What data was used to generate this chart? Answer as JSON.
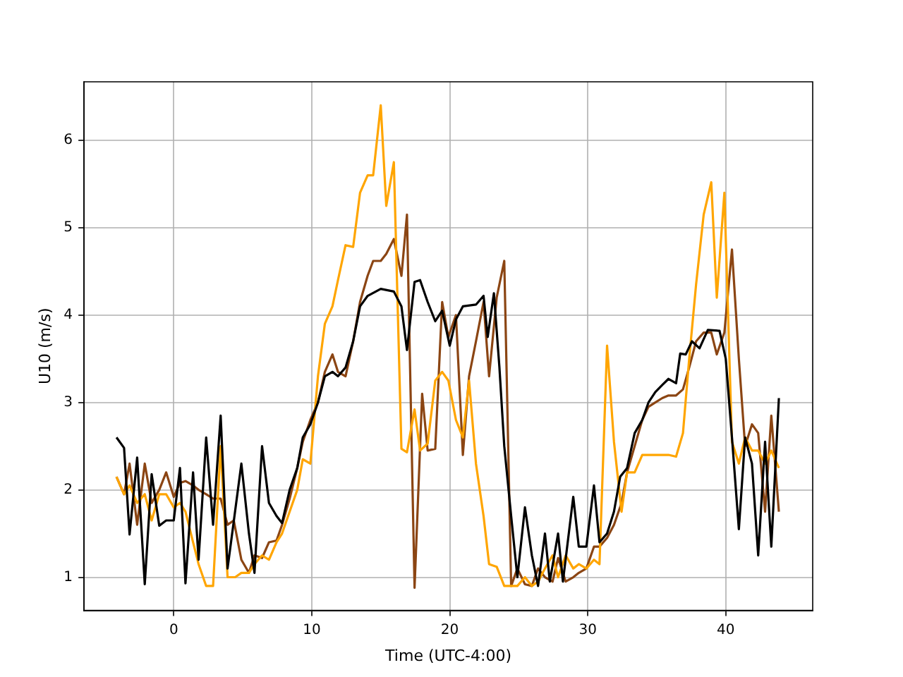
{
  "chart_data": {
    "type": "line",
    "xlabel": "Time (UTC-4:00)",
    "ylabel": "U10 (m/s)",
    "xlim": [
      -6.5,
      46.3
    ],
    "ylim": [
      0.62,
      6.67
    ],
    "xticks": [
      0,
      10,
      20,
      30,
      40
    ],
    "yticks": [
      1,
      2,
      3,
      4,
      5,
      6
    ],
    "grid": true,
    "legend": false,
    "marker": "none",
    "line_style": "solid",
    "series": [
      {
        "color": "#000000",
        "x": [
          -4.15,
          -3.6,
          -3.2,
          -2.65,
          -2.1,
          -1.6,
          -1.05,
          -0.55,
          0,
          0.45,
          0.85,
          1.4,
          1.8,
          2.35,
          2.85,
          3.4,
          3.9,
          4.9,
          5.45,
          5.85,
          6.4,
          6.9,
          7.45,
          7.85,
          8.4,
          8.95,
          9.35,
          9.9,
          10.45,
          10.95,
          11.5,
          11.9,
          12.45,
          13,
          13.5,
          14.05,
          15,
          15.95,
          16.5,
          16.9,
          17.45,
          17.85,
          18.4,
          18.95,
          19.45,
          20,
          20.45,
          20.95,
          21.9,
          22.45,
          22.75,
          23.2,
          23.6,
          23.95,
          24.45,
          24.9,
          25.45,
          25.95,
          26.4,
          26.9,
          27.25,
          27.85,
          28.2,
          28.95,
          29.35,
          29.9,
          30.45,
          30.85,
          31.4,
          31.9,
          32.35,
          32.85,
          33.4,
          33.95,
          34.4,
          34.9,
          35.4,
          35.85,
          36.4,
          36.7,
          37.1,
          37.55,
          38.1,
          38.7,
          39.55,
          40,
          40.45,
          40.95,
          41.4,
          41.9,
          42.35,
          42.85,
          43.3,
          43.85
        ],
        "values": [
          2.6,
          2.48,
          1.49,
          2.37,
          0.92,
          2.18,
          1.59,
          1.65,
          1.65,
          2.25,
          0.93,
          2.2,
          1.2,
          2.6,
          1.6,
          2.85,
          1.1,
          2.3,
          1.5,
          1.05,
          2.5,
          1.85,
          1.7,
          1.62,
          2.0,
          2.25,
          2.6,
          2.75,
          3.0,
          3.3,
          3.35,
          3.3,
          3.4,
          3.7,
          4.1,
          4.22,
          4.3,
          4.27,
          4.1,
          3.6,
          4.38,
          4.4,
          4.15,
          3.93,
          4.05,
          3.65,
          3.95,
          4.1,
          4.12,
          4.22,
          3.75,
          4.25,
          3.4,
          2.5,
          1.7,
          1.0,
          1.8,
          1.25,
          0.9,
          1.5,
          0.95,
          1.5,
          0.95,
          1.92,
          1.35,
          1.35,
          2.05,
          1.4,
          1.5,
          1.75,
          2.15,
          2.25,
          2.65,
          2.8,
          3.0,
          3.12,
          3.2,
          3.27,
          3.22,
          3.56,
          3.55,
          3.7,
          3.62,
          3.83,
          3.82,
          3.5,
          2.6,
          1.55,
          2.6,
          2.3,
          1.25,
          2.55,
          1.35,
          3.05
        ]
      },
      {
        "color": "#ffa500",
        "x": [
          -4.15,
          -3.6,
          -3.2,
          -2.65,
          -2.1,
          -1.6,
          -1.05,
          -0.55,
          0,
          0.45,
          0.85,
          1.4,
          1.8,
          2.35,
          2.85,
          3.4,
          3.9,
          4.45,
          4.9,
          5.45,
          5.85,
          6.4,
          6.9,
          7.45,
          7.85,
          8.4,
          8.95,
          9.35,
          9.9,
          10.45,
          10.95,
          11.5,
          11.9,
          12.45,
          13,
          13.5,
          14.05,
          14.45,
          15,
          15.4,
          15.95,
          16.5,
          16.9,
          17.45,
          17.85,
          18.4,
          18.95,
          19.45,
          19.9,
          20.45,
          20.95,
          21.4,
          21.9,
          22.45,
          22.85,
          23.4,
          23.95,
          24.9,
          25.45,
          25.95,
          26.4,
          26.9,
          27.45,
          27.85,
          28.4,
          28.95,
          29.35,
          29.9,
          30.45,
          30.85,
          31.4,
          31.9,
          32.45,
          32.85,
          33.4,
          33.95,
          34.4,
          34.9,
          35.4,
          35.85,
          36.4,
          36.9,
          37.35,
          37.85,
          38.4,
          38.95,
          39.35,
          39.9,
          40.45,
          40.95,
          41.4,
          41.9,
          42.35,
          42.85,
          43.3,
          43.85
        ],
        "values": [
          2.15,
          1.95,
          2.05,
          1.85,
          1.95,
          1.65,
          1.95,
          1.95,
          1.8,
          1.85,
          1.75,
          1.4,
          1.15,
          0.9,
          0.9,
          2.5,
          1.0,
          1.0,
          1.05,
          1.05,
          1.15,
          1.25,
          1.2,
          1.4,
          1.5,
          1.75,
          2.0,
          2.35,
          2.3,
          3.3,
          3.9,
          4.1,
          4.4,
          4.8,
          4.78,
          5.4,
          5.6,
          5.6,
          6.4,
          5.25,
          5.75,
          2.47,
          2.43,
          2.92,
          2.45,
          2.53,
          3.25,
          3.35,
          3.25,
          2.8,
          2.6,
          3.25,
          2.3,
          1.7,
          1.15,
          1.12,
          0.9,
          0.9,
          1.0,
          0.9,
          0.95,
          1.1,
          1.25,
          1.0,
          1.25,
          1.1,
          1.15,
          1.1,
          1.2,
          1.15,
          3.65,
          2.55,
          1.75,
          2.2,
          2.2,
          2.4,
          2.4,
          2.4,
          2.4,
          2.4,
          2.38,
          2.65,
          3.5,
          4.35,
          5.15,
          5.52,
          4.2,
          5.4,
          2.55,
          2.3,
          2.6,
          2.45,
          2.45,
          2.3,
          2.45,
          2.25
        ]
      },
      {
        "color": "#8b4513",
        "x": [
          -4.15,
          -3.6,
          -3.2,
          -2.65,
          -2.1,
          -1.6,
          -1.05,
          -0.55,
          0,
          0.45,
          0.85,
          1.4,
          1.8,
          2.35,
          2.85,
          3.4,
          3.9,
          4.35,
          4.9,
          5.45,
          5.85,
          6.4,
          6.9,
          7.45,
          7.85,
          8.4,
          8.95,
          9.35,
          9.9,
          10.45,
          10.95,
          11.5,
          11.9,
          12.45,
          13,
          13.5,
          14.05,
          14.45,
          15,
          15.4,
          15.95,
          16.5,
          16.9,
          17.45,
          18,
          18.4,
          18.95,
          19.45,
          19.9,
          20.45,
          20.95,
          21.4,
          21.9,
          22.45,
          22.85,
          23.4,
          23.95,
          24.45,
          24.9,
          25.45,
          25.95,
          26.4,
          26.9,
          27.45,
          27.85,
          28.4,
          28.95,
          29.35,
          29.9,
          30.45,
          30.85,
          31.4,
          31.9,
          32.45,
          32.85,
          33.4,
          33.95,
          34.4,
          34.9,
          35.4,
          35.85,
          36.4,
          36.9,
          37.35,
          37.85,
          38.4,
          38.95,
          39.35,
          39.9,
          40.45,
          40.95,
          41.4,
          41.9,
          42.35,
          42.85,
          43.3,
          43.85
        ],
        "values": [
          2.15,
          1.95,
          2.3,
          1.6,
          2.3,
          1.85,
          2.0,
          2.2,
          1.92,
          2.08,
          2.1,
          2.05,
          2.0,
          1.95,
          1.9,
          1.9,
          1.6,
          1.65,
          1.2,
          1.05,
          1.25,
          1.22,
          1.4,
          1.42,
          1.6,
          1.9,
          2.25,
          2.55,
          2.8,
          3.0,
          3.35,
          3.55,
          3.35,
          3.3,
          3.7,
          4.15,
          4.45,
          4.62,
          4.62,
          4.7,
          4.87,
          4.45,
          5.15,
          0.88,
          3.1,
          2.45,
          2.47,
          4.15,
          3.75,
          4.0,
          2.4,
          3.3,
          3.7,
          4.15,
          3.3,
          4.2,
          4.62,
          0.9,
          1.1,
          0.92,
          0.9,
          1.1,
          1.0,
          0.95,
          1.22,
          0.95,
          1.0,
          1.05,
          1.1,
          1.35,
          1.35,
          1.45,
          1.6,
          1.85,
          2.2,
          2.5,
          2.8,
          2.95,
          3.0,
          3.05,
          3.08,
          3.08,
          3.15,
          3.4,
          3.7,
          3.8,
          3.8,
          3.55,
          3.8,
          4.75,
          3.5,
          2.5,
          2.75,
          2.65,
          1.75,
          2.85,
          1.75
        ]
      }
    ]
  }
}
